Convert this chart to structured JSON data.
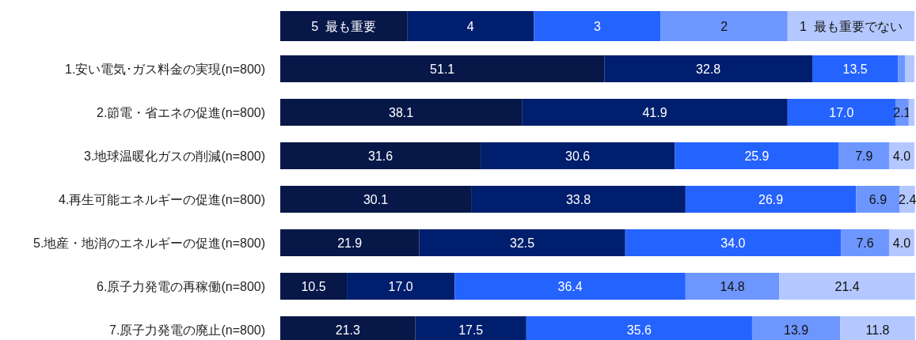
{
  "chart_data": {
    "type": "bar",
    "orientation": "horizontal",
    "stacked": true,
    "legend": "top",
    "categories": [
      "1.安い電気･ガス料金の実現(n=800)",
      "2.節電・省エネの促進(n=800)",
      "3.地球温暖化ガスの削減(n=800)",
      "4.再生可能エネルギーの促進(n=800)",
      "5.地産・地消のエネルギーの促進(n=800)",
      "6.原子力発電の再稼働(n=800)",
      "7.原子力発電の廃止(n=800)"
    ],
    "xlim": [
      0,
      100
    ],
    "series": [
      {
        "name": "5  最も重要",
        "color": "#061748",
        "values": [
          51.1,
          38.1,
          31.6,
          30.1,
          21.9,
          10.5,
          21.3
        ],
        "value_labels": [
          "51.1",
          "38.1",
          "31.6",
          "30.1",
          "21.9",
          "10.5",
          "21.3"
        ]
      },
      {
        "name": "4",
        "color": "#001e6e",
        "values": [
          32.8,
          41.9,
          30.6,
          33.8,
          32.5,
          17.0,
          17.5
        ],
        "value_labels": [
          "32.8",
          "41.9",
          "30.6",
          "33.8",
          "32.5",
          "17.0",
          "17.5"
        ]
      },
      {
        "name": "3",
        "color": "#2563ff",
        "values": [
          13.5,
          17.0,
          25.9,
          26.9,
          34.0,
          36.4,
          35.6
        ],
        "value_labels": [
          "13.5",
          "17.0",
          "25.9",
          "26.9",
          "34.0",
          "36.4",
          "35.6"
        ]
      },
      {
        "name": "2",
        "color": "#6e96ff",
        "values": [
          1.1,
          2.1,
          7.9,
          6.9,
          7.6,
          14.8,
          13.9
        ],
        "value_labels": [
          null,
          "2.1",
          "7.9",
          "6.9",
          "7.6",
          "14.8",
          "13.9"
        ]
      },
      {
        "name": "1  最も重要でない",
        "color": "#b4c8ff",
        "values": [
          1.5,
          0.9,
          4.0,
          2.4,
          4.0,
          21.4,
          11.8
        ],
        "value_labels": [
          null,
          null,
          "4.0",
          "2.4",
          "4.0",
          "21.4",
          "11.8"
        ]
      }
    ]
  }
}
